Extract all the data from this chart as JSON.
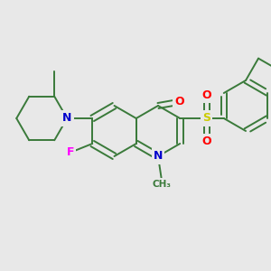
{
  "background_color": "#e8e8e8",
  "bond_color": "#3a7a3a",
  "atom_colors": {
    "O": "#ff0000",
    "N": "#0000cc",
    "F": "#ff00ff",
    "S": "#cccc00",
    "C": "#3a7a3a"
  },
  "figsize": [
    3.0,
    3.0
  ],
  "dpi": 100
}
